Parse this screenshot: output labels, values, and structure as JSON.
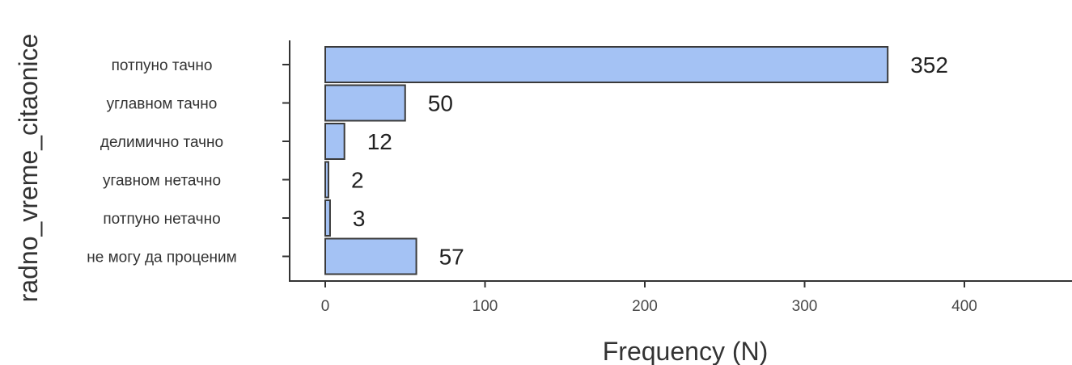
{
  "colors": {
    "bar_fill": "#a4c2f4",
    "bar_stroke": "#3a3a3a",
    "axis": "#333333"
  },
  "chart_data": {
    "type": "bar",
    "orientation": "horizontal",
    "categories": [
      "потпуно тачно",
      "углавном тачно",
      "делимично тачно",
      "угавном нетачно",
      "потпуно нетачно",
      "не могу да проценим"
    ],
    "values": [
      352,
      50,
      12,
      2,
      3,
      57
    ],
    "value_labels": [
      "352",
      "50",
      "12",
      "2",
      "3",
      "57"
    ],
    "xlabel": "Frequency (N)",
    "ylabel": "radno_vreme_citaonice",
    "xticks": [
      0,
      100,
      200,
      300,
      400
    ],
    "xtick_labels": [
      "0",
      "100",
      "200",
      "300",
      "400"
    ],
    "xlim": [
      -22,
      470
    ],
    "grid": false
  }
}
